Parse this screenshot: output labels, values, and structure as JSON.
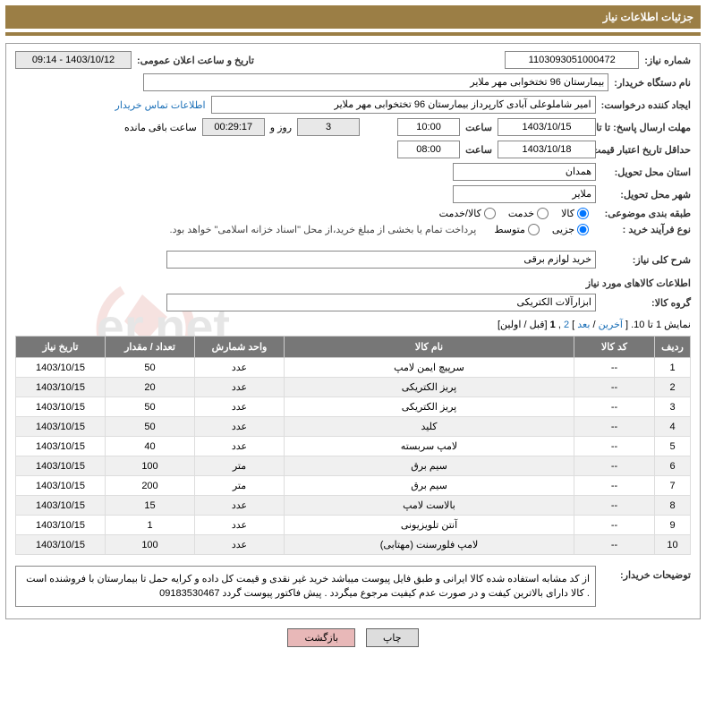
{
  "header": {
    "title": "جزئیات اطلاعات نیاز"
  },
  "fields": {
    "need_number_label": "شماره نیاز:",
    "need_number": "1103093051000472",
    "public_announce_label": "تاریخ و ساعت اعلان عمومی:",
    "public_announce": "1403/10/12 - 09:14",
    "buyer_device_label": "نام دستگاه خریدار:",
    "buyer_device": "بیمارستان 96 تختخوابی مهر ملایر",
    "requester_label": "ایجاد کننده درخواست:",
    "requester": "امیر شاملوعلی آبادی کارپرداز بیمارستان 96 تختخوابی مهر ملایر",
    "buyer_contact_link": "اطلاعات تماس خریدار",
    "deadline_reply_label": "مهلت ارسال پاسخ:",
    "deadline_reply_date": "1403/10/15",
    "until_date_label": "تا تاریخ:",
    "time_label": "ساعت",
    "deadline_reply_time": "10:00",
    "days_count": "3",
    "days_and_label": "روز و",
    "countdown": "00:29:17",
    "remaining_label": "ساعت باقی مانده",
    "min_validity_label": "حداقل تاریخ اعتبار قیمت:",
    "min_validity_date": "1403/10/18",
    "min_validity_time": "08:00",
    "province_label": "استان محل تحویل:",
    "province": "همدان",
    "city_label": "شهر محل تحویل:",
    "city": "ملایر",
    "category_label": "طبقه بندی موضوعی:",
    "cat_opt_kala": "کالا",
    "cat_opt_khadamat": "خدمت",
    "cat_opt_kalakhadamat": "کالا/خدمت",
    "purchase_type_label": "نوع فرآیند خرید :",
    "pt_opt_jozi": "جزیی",
    "pt_opt_motavaset": "متوسط",
    "purchase_note": "پرداخت تمام یا بخشی از مبلغ خرید،از محل \"اسناد خزانه اسلامی\" خواهد بود.",
    "need_desc_label": "شرح کلی نیاز:",
    "need_desc": "خرید لوازم  برقی",
    "goods_section_title": "اطلاعات کالاهای مورد نیاز",
    "group_label": "گروه کالا:",
    "group_value": "ابزارآلات الکتریکی",
    "pager_text": "نمایش 1 تا 10.",
    "pager_last": "آخرین",
    "pager_next": "بعد",
    "pager_p1": "1",
    "pager_p2": "2",
    "pager_prev": "قبل",
    "pager_first": "اولین",
    "buyer_notes_label": "توضیحات خریدار:",
    "buyer_notes": "از کد مشابه استفاده شده کالا ایرانی و طبق فایل پیوست میباشد خرید غیر نقدی و قیمت کل داده و کرایه حمل تا بیمارستان با فروشنده است . کالا دارای بالاترین کیفت و در صورت عدم کیفیت مرجوع میگردد . پیش فاکتور پیوست گردد  09183530467"
  },
  "table": {
    "headers": {
      "row": "ردیف",
      "code": "کد کالا",
      "name": "نام کالا",
      "unit": "واحد شمارش",
      "qty": "تعداد / مقدار",
      "date": "تاریخ نیاز"
    },
    "rows": [
      {
        "n": "1",
        "code": "--",
        "name": "سرپیچ ایمن لامپ",
        "unit": "عدد",
        "qty": "50",
        "date": "1403/10/15"
      },
      {
        "n": "2",
        "code": "--",
        "name": "پریز الکتریکی",
        "unit": "عدد",
        "qty": "20",
        "date": "1403/10/15"
      },
      {
        "n": "3",
        "code": "--",
        "name": "پریز الکتریکی",
        "unit": "عدد",
        "qty": "50",
        "date": "1403/10/15"
      },
      {
        "n": "4",
        "code": "--",
        "name": "کلید",
        "unit": "عدد",
        "qty": "50",
        "date": "1403/10/15"
      },
      {
        "n": "5",
        "code": "--",
        "name": "لامپ سربسته",
        "unit": "عدد",
        "qty": "40",
        "date": "1403/10/15"
      },
      {
        "n": "6",
        "code": "--",
        "name": "سیم برق",
        "unit": "متر",
        "qty": "100",
        "date": "1403/10/15"
      },
      {
        "n": "7",
        "code": "--",
        "name": "سیم برق",
        "unit": "متر",
        "qty": "200",
        "date": "1403/10/15"
      },
      {
        "n": "8",
        "code": "--",
        "name": "بالاست لامپ",
        "unit": "عدد",
        "qty": "15",
        "date": "1403/10/15"
      },
      {
        "n": "9",
        "code": "--",
        "name": "آنتن تلویزیونی",
        "unit": "عدد",
        "qty": "1",
        "date": "1403/10/15"
      },
      {
        "n": "10",
        "code": "--",
        "name": "لامپ فلورسنت (مهتابی)",
        "unit": "عدد",
        "qty": "100",
        "date": "1403/10/15"
      }
    ]
  },
  "buttons": {
    "print": "چاپ",
    "back": "بازگشت"
  }
}
